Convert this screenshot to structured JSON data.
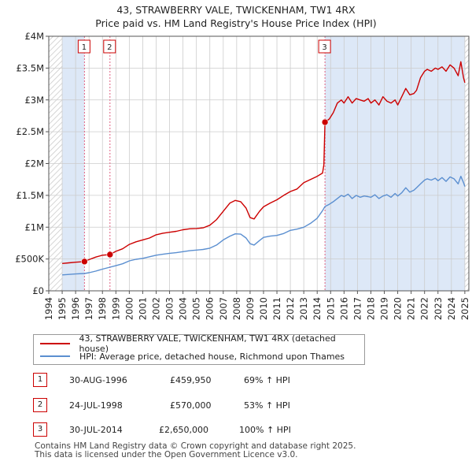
{
  "title_line1": "43, STRAWBERRY VALE, TWICKENHAM, TW1 4RX",
  "title_line2": "Price paid vs. HM Land Registry's House Price Index (HPI)",
  "legend": {
    "series1": "43, STRAWBERRY VALE, TWICKENHAM, TW1 4RX (detached house)",
    "series2": "HPI: Average price, detached house, Richmond upon Thames"
  },
  "colors": {
    "property": "#cc0000",
    "hpi": "#5b8fd0",
    "shade": "#dde8f7",
    "vline": "#e06080",
    "grid": "#cccccc"
  },
  "transactions": [
    {
      "num": "1",
      "date": "30-AUG-1996",
      "price": "£459,950",
      "hpi": "69% ↑ HPI"
    },
    {
      "num": "2",
      "date": "24-JUL-1998",
      "price": "£570,000",
      "hpi": "53% ↑ HPI"
    },
    {
      "num": "3",
      "date": "30-JUL-2014",
      "price": "£2,650,000",
      "hpi": "100% ↑ HPI"
    }
  ],
  "footer_line1": "Contains HM Land Registry data © Crown copyright and database right 2025.",
  "footer_line2": "This data is licensed under the Open Government Licence v3.0.",
  "chart_data": {
    "type": "line",
    "title": "43, STRAWBERRY VALE, TWICKENHAM, TW1 4RX — Price paid vs. HM Land Registry's House Price Index (HPI)",
    "xlabel": "",
    "ylabel": "",
    "xlim": [
      1994,
      2025.3
    ],
    "ylim": [
      0,
      4000000
    ],
    "x_ticks": [
      1994,
      1995,
      1996,
      1997,
      1998,
      1999,
      2000,
      2001,
      2002,
      2003,
      2004,
      2005,
      2006,
      2007,
      2008,
      2009,
      2010,
      2011,
      2012,
      2013,
      2014,
      2015,
      2016,
      2017,
      2018,
      2019,
      2020,
      2021,
      2022,
      2023,
      2024,
      2025
    ],
    "y_ticks": [
      {
        "value": 0,
        "label": "£0"
      },
      {
        "value": 500000,
        "label": "£500K"
      },
      {
        "value": 1000000,
        "label": "£1M"
      },
      {
        "value": 1500000,
        "label": "£1.5M"
      },
      {
        "value": 2000000,
        "label": "£2M"
      },
      {
        "value": 2500000,
        "label": "£2.5M"
      },
      {
        "value": 3000000,
        "label": "£3M"
      },
      {
        "value": 3500000,
        "label": "£3.5M"
      },
      {
        "value": 4000000,
        "label": "£4M"
      }
    ],
    "shaded_regions": [
      [
        1995.0,
        1996.66
      ],
      [
        2014.58,
        2025.0
      ]
    ],
    "hatched_regions": [
      [
        1994.0,
        1995.0
      ],
      [
        2025.0,
        2025.3
      ]
    ],
    "sales": [
      {
        "label": "1",
        "x": 1996.66,
        "y": 459950
      },
      {
        "label": "2",
        "x": 1998.56,
        "y": 570000
      },
      {
        "label": "3",
        "x": 2014.58,
        "y": 2650000
      }
    ],
    "series": [
      {
        "name": "43, STRAWBERRY VALE, TWICKENHAM, TW1 4RX (detached house)",
        "color": "#cc0000",
        "x": [
          1995.0,
          1995.5,
          1996.0,
          1996.66,
          1997.0,
          1997.5,
          1998.0,
          1998.56,
          1999.0,
          1999.5,
          2000.0,
          2000.5,
          2001.0,
          2001.5,
          2002.0,
          2002.5,
          2003.0,
          2003.5,
          2004.0,
          2004.5,
          2005.0,
          2005.5,
          2006.0,
          2006.5,
          2007.0,
          2007.5,
          2007.9,
          2008.3,
          2008.7,
          2009.0,
          2009.3,
          2009.7,
          2010.0,
          2010.5,
          2011.0,
          2011.5,
          2012.0,
          2012.5,
          2013.0,
          2013.5,
          2014.0,
          2014.4,
          2014.5,
          2014.58,
          2014.9,
          2015.2,
          2015.5,
          2015.8,
          2016.0,
          2016.3,
          2016.6,
          2016.9,
          2017.2,
          2017.5,
          2017.8,
          2018.0,
          2018.3,
          2018.6,
          2018.9,
          2019.2,
          2019.5,
          2019.8,
          2020.0,
          2020.3,
          2020.6,
          2020.9,
          2021.2,
          2021.4,
          2021.7,
          2022.0,
          2022.2,
          2022.5,
          2022.8,
          2023.0,
          2023.3,
          2023.6,
          2023.9,
          2024.2,
          2024.5,
          2024.7,
          2024.9,
          2025.0
        ],
        "values": [
          430000,
          440000,
          450000,
          459950,
          490000,
          530000,
          560000,
          570000,
          620000,
          660000,
          730000,
          770000,
          800000,
          830000,
          880000,
          905000,
          920000,
          935000,
          960000,
          975000,
          980000,
          990000,
          1030000,
          1120000,
          1250000,
          1380000,
          1420000,
          1400000,
          1300000,
          1150000,
          1130000,
          1250000,
          1320000,
          1380000,
          1430000,
          1500000,
          1560000,
          1600000,
          1700000,
          1750000,
          1800000,
          1850000,
          1980000,
          2650000,
          2700000,
          2800000,
          2950000,
          3000000,
          2950000,
          3050000,
          2950000,
          3020000,
          3000000,
          2980000,
          3020000,
          2950000,
          3000000,
          2920000,
          3050000,
          2980000,
          2950000,
          3000000,
          2920000,
          3050000,
          3180000,
          3080000,
          3100000,
          3150000,
          3350000,
          3450000,
          3480000,
          3450000,
          3500000,
          3480000,
          3520000,
          3450000,
          3550000,
          3500000,
          3380000,
          3600000,
          3350000,
          3270000
        ]
      },
      {
        "name": "HPI: Average price, detached house, Richmond upon Thames",
        "color": "#5b8fd0",
        "x": [
          1995.0,
          1995.5,
          1996.0,
          1996.66,
          1997.0,
          1997.5,
          1998.0,
          1998.56,
          1999.0,
          1999.5,
          2000.0,
          2000.5,
          2001.0,
          2001.5,
          2002.0,
          2002.5,
          2003.0,
          2003.5,
          2004.0,
          2004.5,
          2005.0,
          2005.5,
          2006.0,
          2006.5,
          2007.0,
          2007.5,
          2007.9,
          2008.3,
          2008.7,
          2009.0,
          2009.3,
          2009.7,
          2010.0,
          2010.5,
          2011.0,
          2011.5,
          2012.0,
          2012.5,
          2013.0,
          2013.5,
          2014.0,
          2014.4,
          2014.58,
          2014.9,
          2015.2,
          2015.5,
          2015.8,
          2016.0,
          2016.3,
          2016.6,
          2016.9,
          2017.2,
          2017.5,
          2017.8,
          2018.0,
          2018.3,
          2018.6,
          2018.9,
          2019.2,
          2019.5,
          2019.8,
          2020.0,
          2020.3,
          2020.6,
          2020.9,
          2021.2,
          2021.4,
          2021.7,
          2022.0,
          2022.2,
          2022.5,
          2022.8,
          2023.0,
          2023.3,
          2023.6,
          2023.9,
          2024.2,
          2024.5,
          2024.7,
          2024.9,
          2025.0
        ],
        "values": [
          250000,
          258000,
          265000,
          272000,
          285000,
          310000,
          340000,
          372000,
          395000,
          425000,
          470000,
          495000,
          510000,
          535000,
          560000,
          575000,
          590000,
          600000,
          615000,
          630000,
          640000,
          650000,
          670000,
          720000,
          800000,
          860000,
          895000,
          890000,
          830000,
          740000,
          720000,
          790000,
          840000,
          860000,
          870000,
          900000,
          950000,
          970000,
          1000000,
          1060000,
          1140000,
          1260000,
          1325000,
          1360000,
          1400000,
          1450000,
          1500000,
          1480000,
          1520000,
          1450000,
          1500000,
          1470000,
          1490000,
          1480000,
          1470000,
          1510000,
          1450000,
          1490000,
          1510000,
          1470000,
          1530000,
          1490000,
          1540000,
          1620000,
          1550000,
          1580000,
          1620000,
          1680000,
          1740000,
          1760000,
          1740000,
          1770000,
          1730000,
          1780000,
          1720000,
          1790000,
          1760000,
          1680000,
          1800000,
          1700000,
          1640000
        ]
      }
    ]
  }
}
